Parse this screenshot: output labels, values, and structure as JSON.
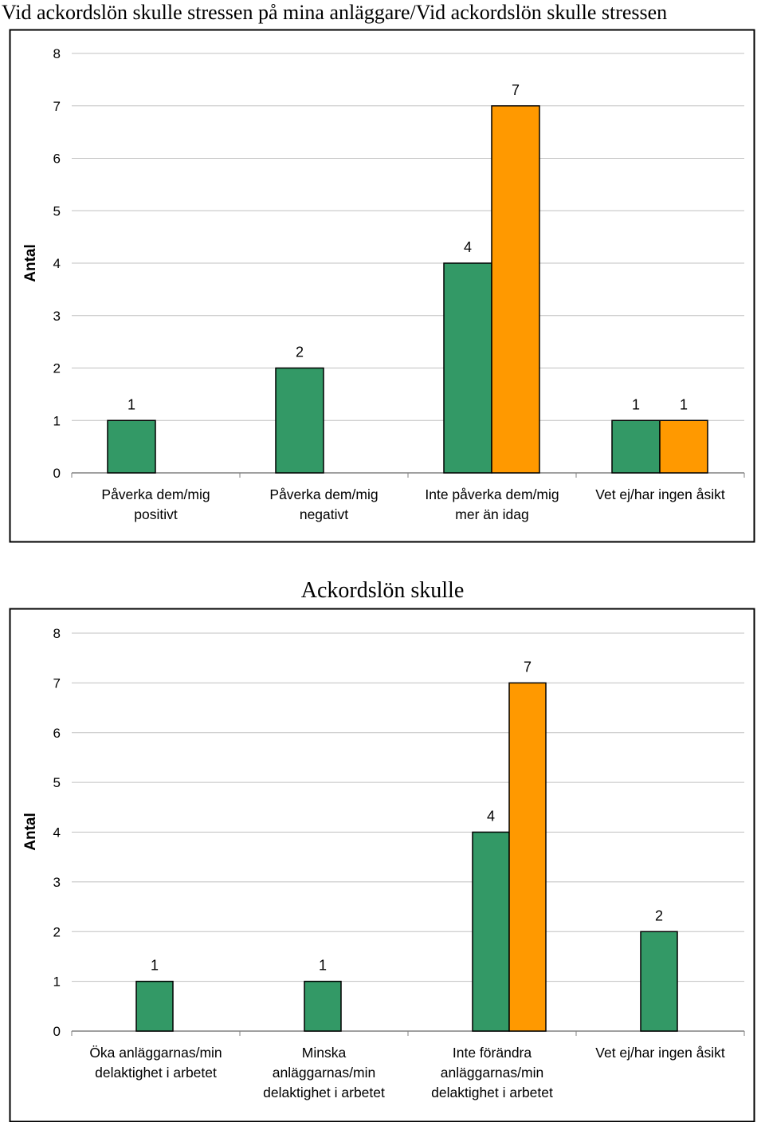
{
  "page": {
    "title": "Vid ackordslön skulle stressen på mina anläggare/Vid ackordslön skulle stressen"
  },
  "colors": {
    "series_1": "#339966",
    "series_2": "#ff9900",
    "frame": "#000000",
    "grid": "#c0c0c0"
  },
  "chart_data": [
    {
      "type": "bar",
      "title": "",
      "xlabel": "",
      "ylabel": "Antal",
      "ylim": [
        0,
        8
      ],
      "yticks": [
        0,
        1,
        2,
        3,
        4,
        5,
        6,
        7,
        8
      ],
      "grid": true,
      "legend": "none",
      "categories": [
        [
          "Påverka dem/mig",
          "positivt"
        ],
        [
          "Påverka dem/mig",
          "negativt"
        ],
        [
          "Inte påverka dem/mig",
          "mer än idag"
        ],
        [
          "Vet ej/har ingen åsikt"
        ]
      ],
      "series": [
        {
          "color": "#339966",
          "values": [
            1,
            2,
            4,
            1
          ]
        },
        {
          "color": "#ff9900",
          "values": [
            null,
            null,
            7,
            1
          ]
        }
      ]
    },
    {
      "type": "bar",
      "title": "Ackordslön skulle",
      "xlabel": "",
      "ylabel": "Antal",
      "ylim": [
        0,
        8
      ],
      "yticks": [
        0,
        1,
        2,
        3,
        4,
        5,
        6,
        7,
        8
      ],
      "grid": true,
      "legend": "none",
      "categories": [
        [
          "Öka anläggarnas/min",
          "delaktighet i arbetet"
        ],
        [
          "Minska",
          "anläggarnas/min",
          "delaktighet i arbetet"
        ],
        [
          "Inte förändra",
          "anläggarnas/min",
          "delaktighet i arbetet"
        ],
        [
          "Vet ej/har ingen åsikt"
        ]
      ],
      "series": [
        {
          "color": "#339966",
          "values": [
            1,
            1,
            4,
            2
          ]
        },
        {
          "color": "#ff9900",
          "values": [
            null,
            null,
            7,
            null
          ]
        }
      ]
    }
  ]
}
